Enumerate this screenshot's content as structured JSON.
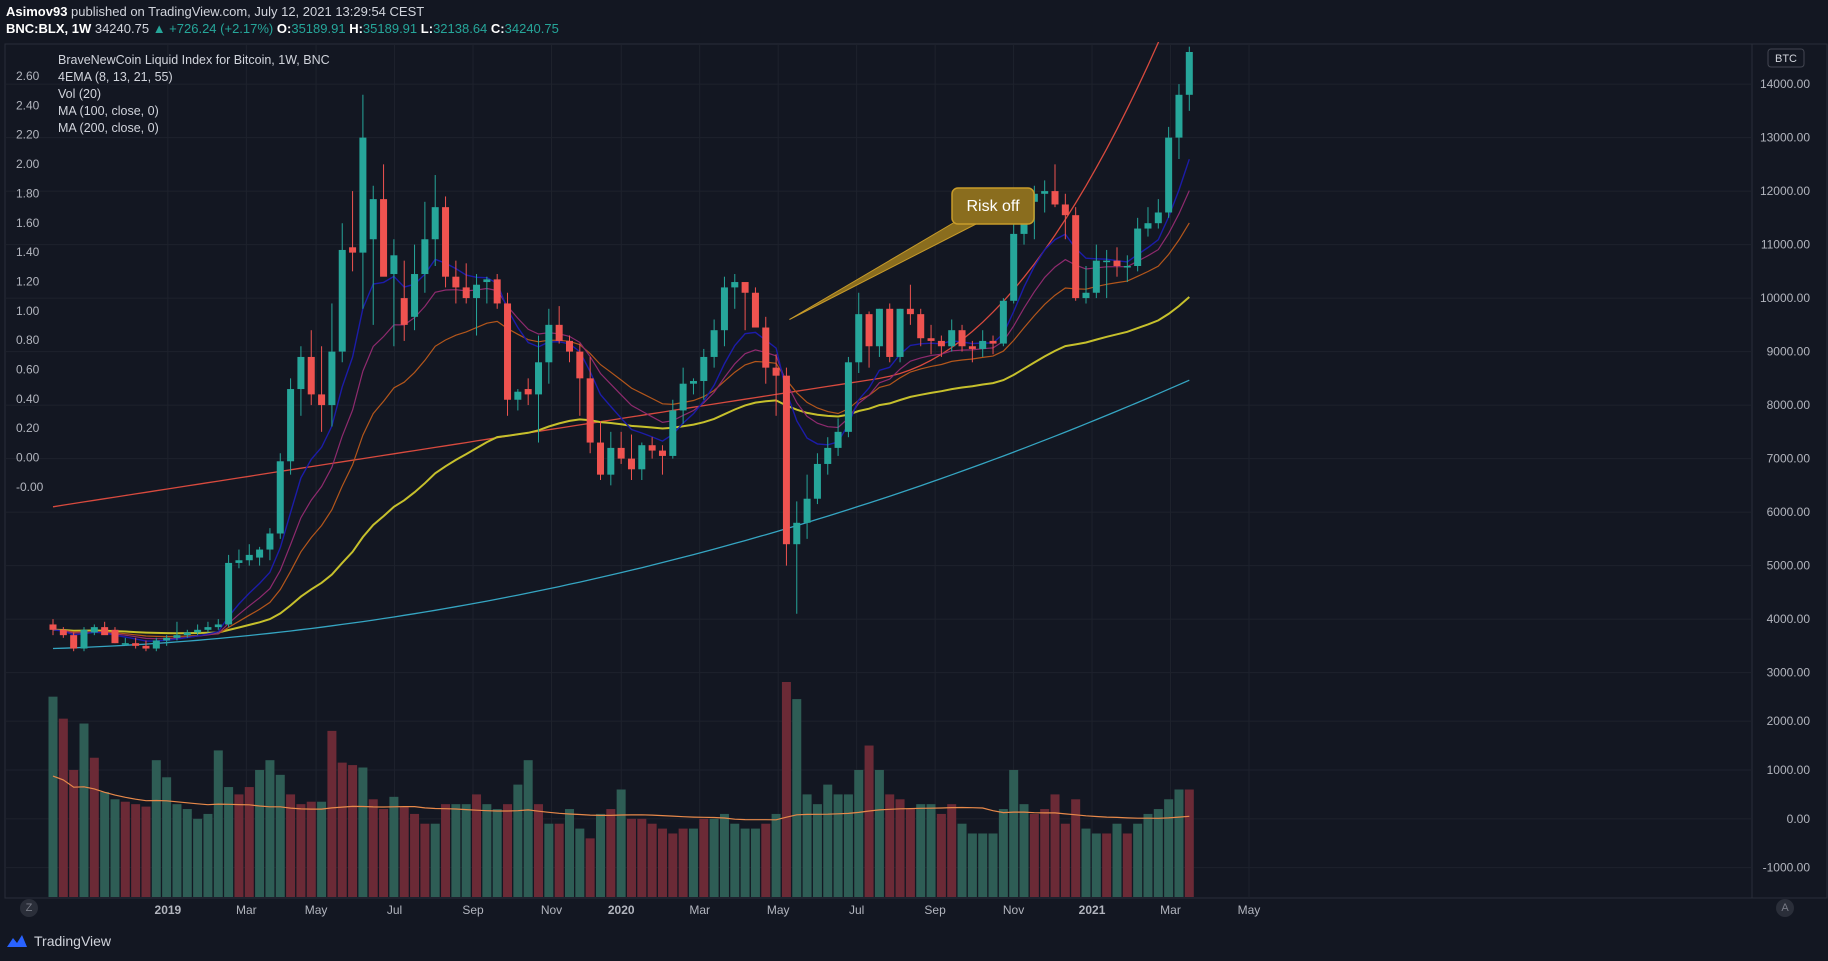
{
  "header": {
    "publisher": "Asimov93",
    "published_text": "published on TradingView.com, July 12, 2021 13:29:54 CEST",
    "symbol": "BNC:BLX, 1W",
    "last": "34240.75",
    "change": "▲ +726.24 (+2.17%)",
    "o_label": "O:",
    "o_value": "35189.91",
    "h_label": "H:",
    "h_value": "35189.91",
    "l_label": "L:",
    "l_value": "32138.64",
    "c_label": "C:",
    "c_value": "34240.75"
  },
  "legend": {
    "title": "BraveNewCoin Liquid Index for Bitcoin, 1W, BNC",
    "items": [
      "4EMA (8, 13, 21, 55)",
      "Vol (20)",
      "MA (100, close, 0)",
      "MA (200, close, 0)"
    ]
  },
  "footer": {
    "logo_text": "TradingView",
    "left_button": "Z",
    "right_button": "A"
  },
  "colors": {
    "background": "#131722",
    "grid": "#1e222d",
    "up": "#26a69a",
    "down": "#ef5350",
    "vol_up": "#26a69a",
    "vol_down": "#ef5350",
    "ema8": "#1c1ca8",
    "ema13": "#8e2a6e",
    "ema21": "#b3561b",
    "ema55": "#c6c02c",
    "ma100": "#d84a3e",
    "ma200": "#35a5c2",
    "vol_ma": "#e8894a"
  },
  "chart_data": {
    "type": "candlestick",
    "title": "BraveNewCoin Liquid Index for Bitcoin, 1W, BNC",
    "xlabel": "",
    "ylabel": "",
    "x_ticks": [
      "2019",
      "Mar",
      "May",
      "Jul",
      "Sep",
      "Nov",
      "2020",
      "Mar",
      "May",
      "Jul",
      "Sep",
      "Nov",
      "2021",
      "Mar",
      "May"
    ],
    "left_axis_ticks": [
      "2.60",
      "2.40",
      "2.20",
      "2.00",
      "1.80",
      "1.60",
      "1.40",
      "1.20",
      "1.00",
      "0.80",
      "0.60",
      "0.40",
      "0.20",
      "0.00",
      "-0.00"
    ],
    "right_axis_label": "BTC",
    "right_axis_ticks": [
      "14000.00",
      "13000.00",
      "12000.00",
      "11000.00",
      "10000.00",
      "9000.00",
      "8000.00",
      "7000.00",
      "6000.00",
      "5000.00",
      "4000.00",
      "3000.00",
      "2000.00",
      "1000.00",
      "0.00",
      "-1000.00"
    ],
    "price_range": [
      2600,
      14600
    ],
    "candles": [
      [
        3900,
        4000,
        3700,
        3800
      ],
      [
        3800,
        3850,
        3650,
        3700
      ],
      [
        3700,
        3750,
        3400,
        3450
      ],
      [
        3450,
        3850,
        3400,
        3800
      ],
      [
        3750,
        3900,
        3700,
        3850
      ],
      [
        3850,
        3950,
        3750,
        3700
      ],
      [
        3800,
        3850,
        3550,
        3550
      ],
      [
        3550,
        3650,
        3500,
        3550
      ],
      [
        3550,
        3650,
        3450,
        3500
      ],
      [
        3500,
        3600,
        3400,
        3450
      ],
      [
        3450,
        3650,
        3400,
        3600
      ],
      [
        3600,
        3700,
        3500,
        3650
      ],
      [
        3650,
        3950,
        3600,
        3700
      ],
      [
        3700,
        3800,
        3650,
        3750
      ],
      [
        3750,
        3900,
        3700,
        3800
      ],
      [
        3800,
        3950,
        3750,
        3850
      ],
      [
        3850,
        4000,
        3800,
        3900
      ],
      [
        3900,
        5200,
        3850,
        5050
      ],
      [
        5050,
        5300,
        4950,
        5100
      ],
      [
        5100,
        5400,
        5000,
        5200
      ],
      [
        5150,
        5350,
        5000,
        5300
      ],
      [
        5300,
        5700,
        5100,
        5600
      ],
      [
        5600,
        7100,
        5500,
        6950
      ],
      [
        6950,
        8500,
        6700,
        8300
      ],
      [
        8300,
        9100,
        7800,
        8900
      ],
      [
        8900,
        9400,
        8000,
        8200
      ],
      [
        8200,
        9100,
        7500,
        8000
      ],
      [
        8000,
        9900,
        7600,
        9000
      ],
      [
        9000,
        11400,
        8800,
        10900
      ],
      [
        10950,
        12000,
        10500,
        10850
      ],
      [
        10850,
        13800,
        9800,
        13000
      ],
      [
        11100,
        12100,
        9500,
        11850
      ],
      [
        11850,
        12500,
        10500,
        10400
      ],
      [
        10450,
        11100,
        9100,
        10800
      ],
      [
        10000,
        10700,
        9200,
        9500
      ],
      [
        9650,
        11000,
        9400,
        10450
      ],
      [
        10450,
        11800,
        10100,
        11100
      ],
      [
        11100,
        12300,
        10600,
        11700
      ],
      [
        11700,
        11900,
        10200,
        10400
      ],
      [
        10400,
        10700,
        9900,
        10200
      ],
      [
        10200,
        10650,
        9900,
        10000
      ],
      [
        10000,
        10450,
        9300,
        10250
      ],
      [
        10300,
        10400,
        9900,
        10350
      ],
      [
        10350,
        10450,
        9800,
        9900
      ],
      [
        9900,
        10100,
        7800,
        8100
      ],
      [
        8100,
        8300,
        7900,
        8250
      ],
      [
        8300,
        8500,
        8000,
        8200
      ],
      [
        8200,
        9300,
        7300,
        8800
      ],
      [
        8800,
        9800,
        8400,
        9500
      ],
      [
        9500,
        9850,
        9150,
        9200
      ],
      [
        9200,
        9300,
        8800,
        9000
      ],
      [
        9000,
        9150,
        7800,
        8500
      ],
      [
        8500,
        8900,
        7100,
        7300
      ],
      [
        7300,
        7700,
        6600,
        6700
      ],
      [
        6700,
        7500,
        6500,
        7200
      ],
      [
        7200,
        7500,
        6900,
        7000
      ],
      [
        7000,
        7450,
        6600,
        6800
      ],
      [
        6800,
        7300,
        6600,
        7250
      ],
      [
        7250,
        7400,
        7000,
        7150
      ],
      [
        7150,
        7250,
        6700,
        7050
      ],
      [
        7050,
        8100,
        7000,
        7900
      ],
      [
        7900,
        8700,
        7650,
        8400
      ],
      [
        8400,
        8500,
        8200,
        8450
      ],
      [
        8450,
        9050,
        8100,
        8900
      ],
      [
        8900,
        9600,
        8700,
        9400
      ],
      [
        9400,
        10400,
        9100,
        10200
      ],
      [
        10200,
        10450,
        9800,
        10300
      ],
      [
        10300,
        10200,
        9400,
        10100
      ],
      [
        10100,
        10200,
        9500,
        9450
      ],
      [
        9450,
        9650,
        8400,
        8700
      ],
      [
        8700,
        8950,
        7800,
        8550
      ],
      [
        8550,
        8700,
        5000,
        5400
      ],
      [
        5400,
        6200,
        4100,
        5800
      ],
      [
        5800,
        6700,
        5500,
        6250
      ],
      [
        6250,
        7100,
        6150,
        6900
      ],
      [
        6900,
        7400,
        6700,
        7200
      ],
      [
        7200,
        7750,
        7050,
        7500
      ],
      [
        7500,
        8900,
        7400,
        8800
      ],
      [
        8800,
        10100,
        8600,
        9700
      ],
      [
        9700,
        9750,
        8700,
        9100
      ],
      [
        9100,
        9800,
        8900,
        9800
      ],
      [
        9800,
        9900,
        8800,
        8900
      ],
      [
        8900,
        9800,
        8800,
        9800
      ],
      [
        9800,
        10250,
        9500,
        9700
      ],
      [
        9700,
        9800,
        9100,
        9250
      ],
      [
        9250,
        9500,
        8950,
        9200
      ],
      [
        9200,
        9300,
        8900,
        9100
      ],
      [
        9100,
        9600,
        9000,
        9400
      ],
      [
        9400,
        9500,
        9000,
        9100
      ],
      [
        9100,
        9200,
        8800,
        9050
      ],
      [
        9050,
        9400,
        8900,
        9200
      ],
      [
        9200,
        9300,
        8950,
        9150
      ],
      [
        9150,
        10000,
        9100,
        9950
      ],
      [
        9950,
        11500,
        9900,
        11200
      ],
      [
        11200,
        12000,
        11000,
        11800
      ],
      [
        11800,
        12100,
        11100,
        11950
      ],
      [
        11950,
        12200,
        11600,
        12000
      ],
      [
        12000,
        12500,
        11700,
        11750
      ],
      [
        11750,
        11950,
        11100,
        11550
      ],
      [
        11550,
        11700,
        9950,
        10000
      ],
      [
        10000,
        10600,
        9900,
        10100
      ],
      [
        10100,
        11000,
        10000,
        10700
      ],
      [
        10700,
        10900,
        10000,
        10700
      ],
      [
        10700,
        10950,
        10400,
        10600
      ],
      [
        10600,
        10800,
        10300,
        10600
      ],
      [
        10600,
        11500,
        10500,
        11300
      ],
      [
        11300,
        11700,
        11150,
        11400
      ],
      [
        11400,
        11850,
        11300,
        11600
      ],
      [
        11600,
        13200,
        11500,
        13000
      ],
      [
        13000,
        14000,
        12600,
        13800
      ],
      [
        13800,
        14700,
        13500,
        14600
      ]
    ],
    "volume_range": [
      -1600,
      2800
    ],
    "volumes": [
      [
        2500,
        "u"
      ],
      [
        2050,
        "d"
      ],
      [
        1000,
        "d"
      ],
      [
        1950,
        "u"
      ],
      [
        1250,
        "d"
      ],
      [
        550,
        "u"
      ],
      [
        400,
        "u"
      ],
      [
        350,
        "d"
      ],
      [
        300,
        "d"
      ],
      [
        250,
        "d"
      ],
      [
        1200,
        "u"
      ],
      [
        850,
        "u"
      ],
      [
        300,
        "u"
      ],
      [
        200,
        "u"
      ],
      [
        0,
        "u"
      ],
      [
        100,
        "u"
      ],
      [
        1400,
        "u"
      ],
      [
        650,
        "u"
      ],
      [
        500,
        "d"
      ],
      [
        650,
        "d"
      ],
      [
        1000,
        "u"
      ],
      [
        1200,
        "u"
      ],
      [
        900,
        "u"
      ],
      [
        500,
        "d"
      ],
      [
        300,
        "d"
      ],
      [
        350,
        "d"
      ],
      [
        350,
        "u"
      ],
      [
        1800,
        "d"
      ],
      [
        1150,
        "d"
      ],
      [
        1100,
        "d"
      ],
      [
        1050,
        "u"
      ],
      [
        400,
        "d"
      ],
      [
        200,
        "d"
      ],
      [
        450,
        "u"
      ],
      [
        250,
        "d"
      ],
      [
        100,
        "d"
      ],
      [
        -100,
        "d"
      ],
      [
        -100,
        "u"
      ],
      [
        300,
        "d"
      ],
      [
        300,
        "u"
      ],
      [
        300,
        "u"
      ],
      [
        500,
        "d"
      ],
      [
        300,
        "u"
      ],
      [
        200,
        "u"
      ],
      [
        300,
        "d"
      ],
      [
        700,
        "u"
      ],
      [
        1200,
        "u"
      ],
      [
        300,
        "d"
      ],
      [
        -100,
        "u"
      ],
      [
        -100,
        "d"
      ],
      [
        200,
        "u"
      ],
      [
        -200,
        "u"
      ],
      [
        -400,
        "d"
      ],
      [
        100,
        "u"
      ],
      [
        200,
        "d"
      ],
      [
        600,
        "u"
      ],
      [
        0,
        "d"
      ],
      [
        0,
        "d"
      ],
      [
        -100,
        "d"
      ],
      [
        -200,
        "d"
      ],
      [
        -300,
        "d"
      ],
      [
        -200,
        "d"
      ],
      [
        -200,
        "u"
      ],
      [
        0,
        "d"
      ],
      [
        0,
        "u"
      ],
      [
        100,
        "u"
      ],
      [
        -100,
        "u"
      ],
      [
        -200,
        "u"
      ],
      [
        -200,
        "u"
      ],
      [
        -100,
        "d"
      ],
      [
        100,
        "u"
      ],
      [
        2800,
        "d"
      ],
      [
        2450,
        "u"
      ],
      [
        500,
        "u"
      ],
      [
        300,
        "u"
      ],
      [
        700,
        "u"
      ],
      [
        500,
        "u"
      ],
      [
        500,
        "u"
      ],
      [
        1000,
        "u"
      ],
      [
        1500,
        "d"
      ],
      [
        1000,
        "u"
      ],
      [
        500,
        "d"
      ],
      [
        400,
        "d"
      ],
      [
        200,
        "d"
      ],
      [
        300,
        "u"
      ],
      [
        300,
        "u"
      ],
      [
        100,
        "d"
      ],
      [
        300,
        "d"
      ],
      [
        -100,
        "u"
      ],
      [
        -300,
        "u"
      ],
      [
        -300,
        "u"
      ],
      [
        -300,
        "u"
      ],
      [
        200,
        "u"
      ],
      [
        1000,
        "u"
      ],
      [
        300,
        "u"
      ],
      [
        100,
        "d"
      ],
      [
        200,
        "d"
      ],
      [
        500,
        "d"
      ],
      [
        -100,
        "d"
      ],
      [
        400,
        "d"
      ],
      [
        -200,
        "u"
      ],
      [
        -300,
        "u"
      ],
      [
        -300,
        "d"
      ],
      [
        -100,
        "u"
      ],
      [
        -300,
        "d"
      ],
      [
        -100,
        "u"
      ],
      [
        100,
        "u"
      ],
      [
        200,
        "u"
      ],
      [
        400,
        "u"
      ],
      [
        600,
        "u"
      ],
      [
        600,
        "d"
      ]
    ],
    "annotation": {
      "text": "Risk off",
      "candle_index": 71
    }
  }
}
